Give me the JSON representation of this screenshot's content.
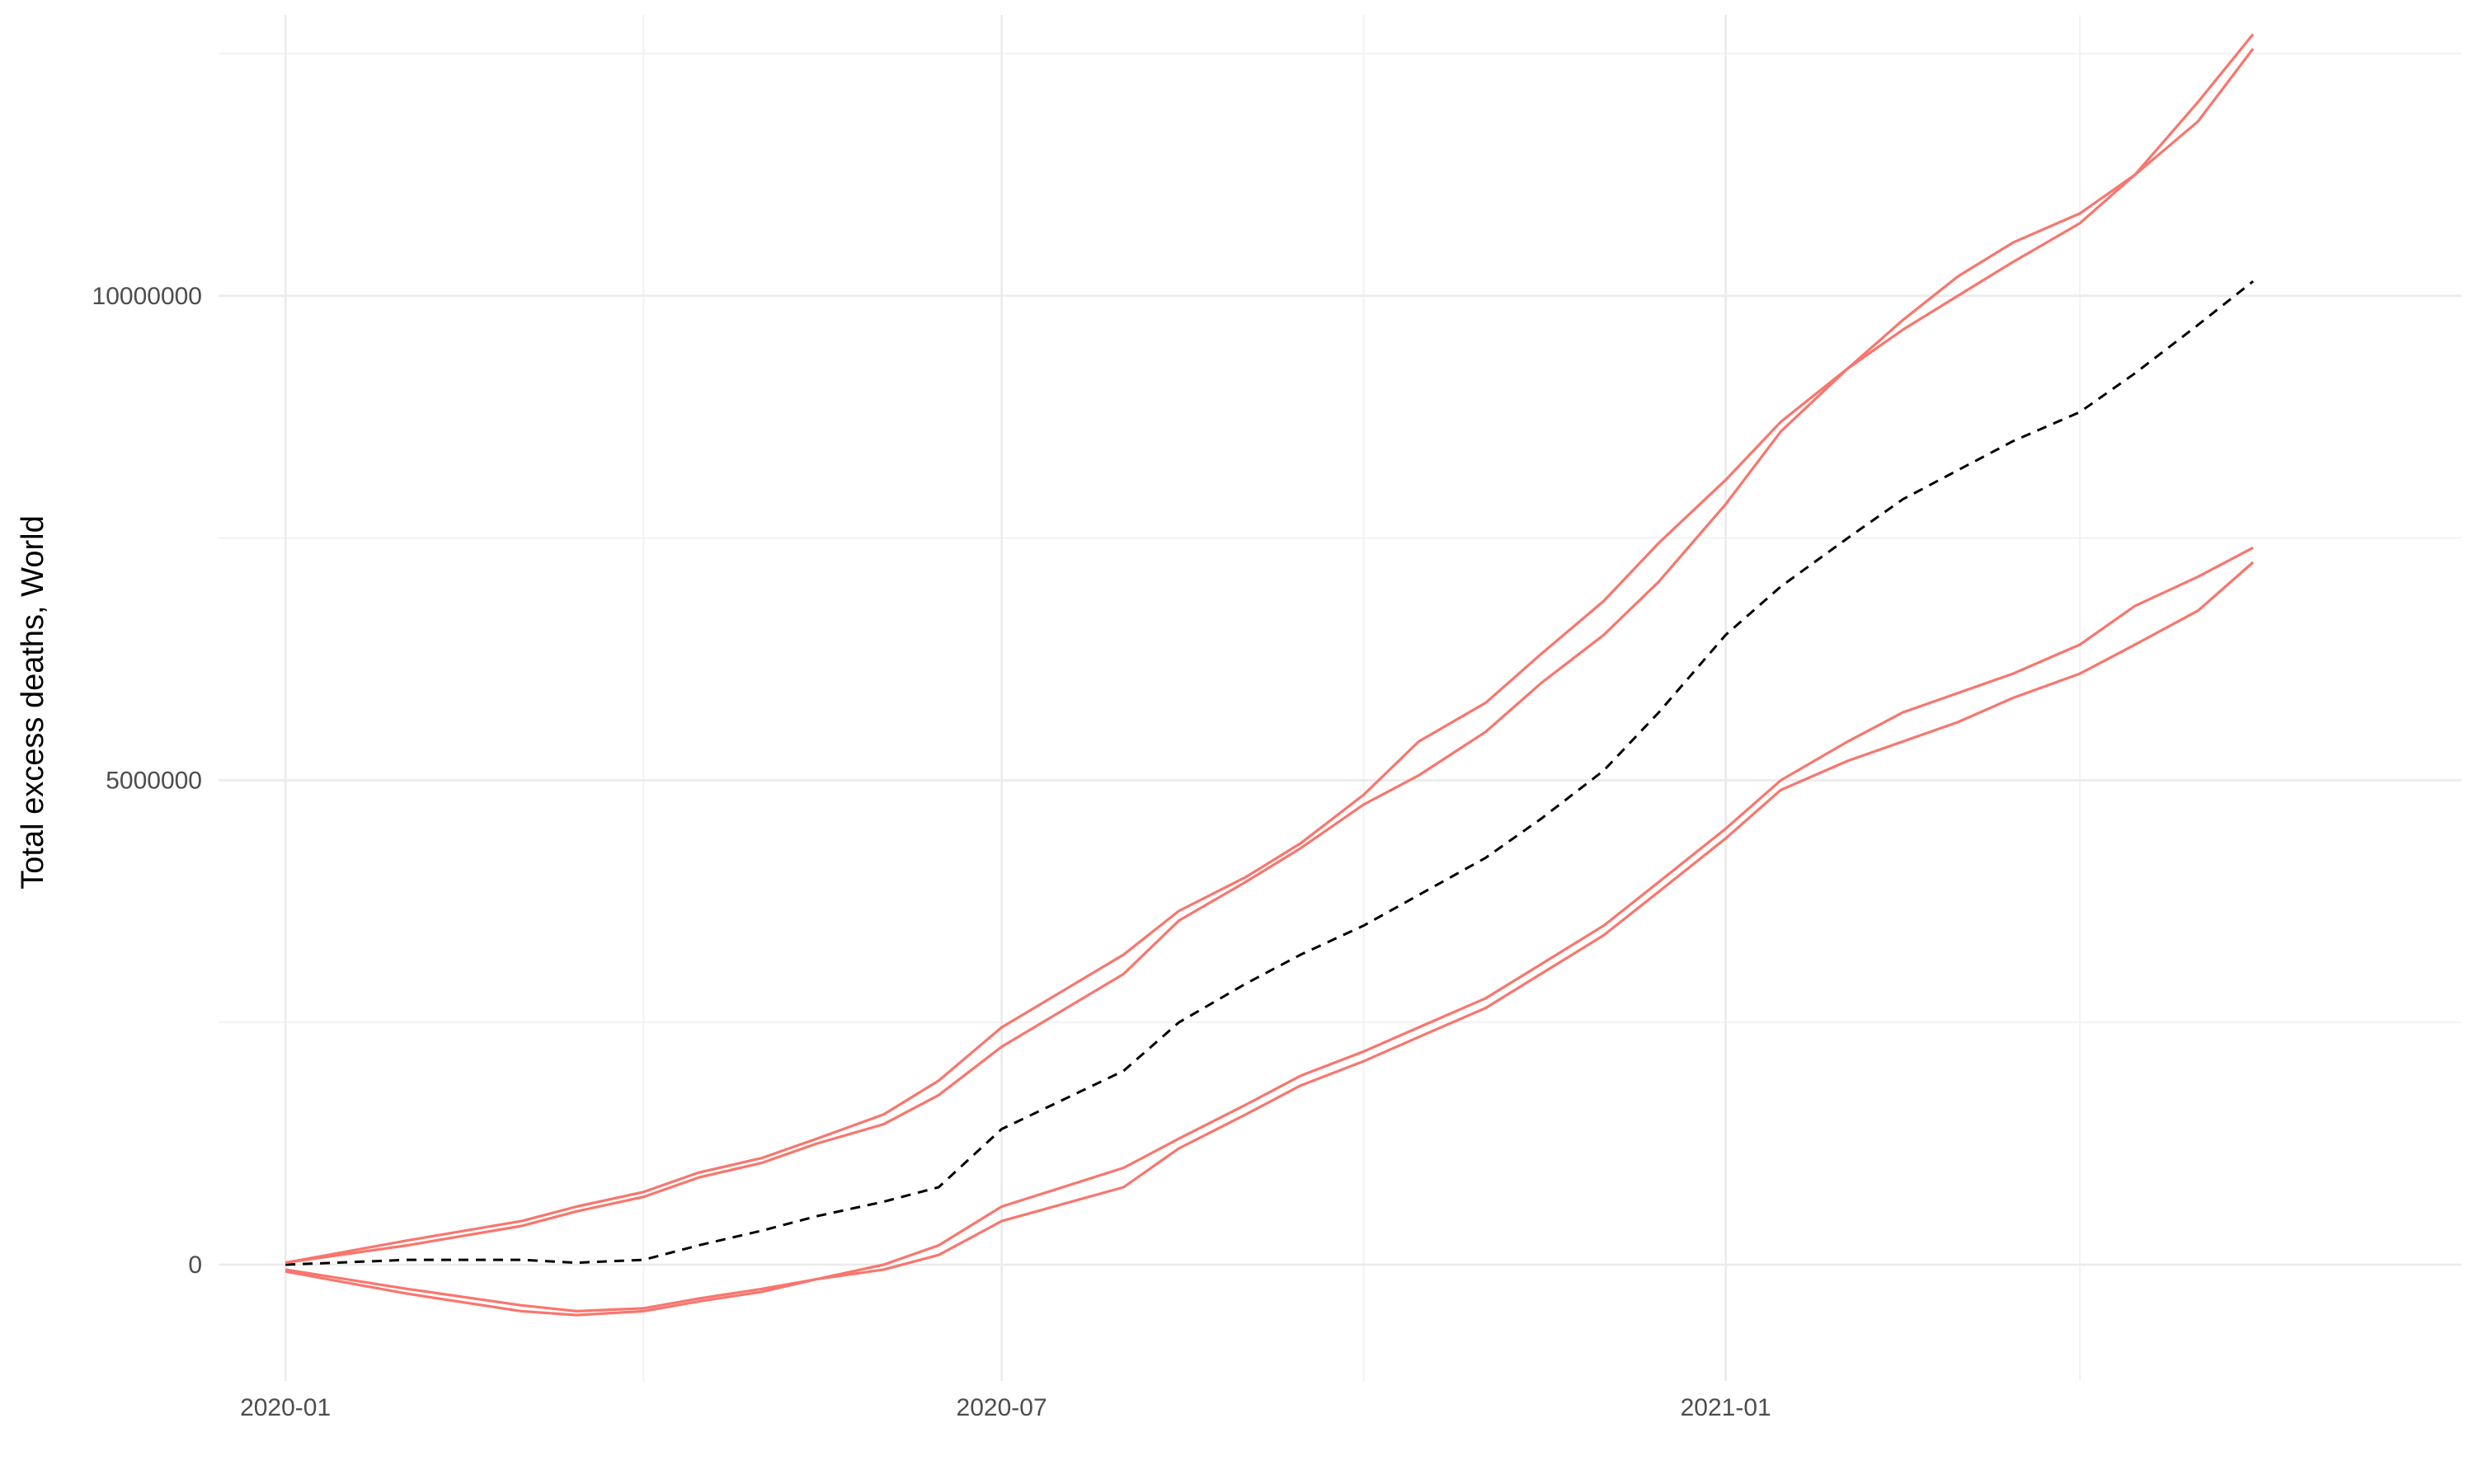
{
  "chart_data": {
    "type": "line",
    "title": "",
    "xlabel": "",
    "ylabel": "Total excess deaths, World",
    "xlim": [
      "2019-12-15",
      "2021-07-07"
    ],
    "ylim": [
      -1200000,
      12900000
    ],
    "x_ticks": [
      "2020-01",
      "2020-07",
      "2021-01"
    ],
    "x_ticks_at": [
      "2020-01-01",
      "2020-07-01",
      "2021-01-01"
    ],
    "x_minor_ticks_at": [
      "2020-04-01",
      "2020-10-01",
      "2021-04-01"
    ],
    "y_ticks": [
      0,
      5000000,
      10000000
    ],
    "y_tick_labels": [
      "0",
      "5000000",
      "10000000"
    ],
    "y_minor_ticks": [
      2500000,
      7500000,
      12500000
    ],
    "grid": true,
    "legend": "none",
    "series": [
      {
        "role": "central-estimate",
        "color": "#000000",
        "dash": "dashed",
        "points": [
          [
            "2020-01-01",
            0
          ],
          [
            "2020-02-01",
            50000
          ],
          [
            "2020-03-01",
            50000
          ],
          [
            "2020-03-15",
            20000
          ],
          [
            "2020-04-01",
            50000
          ],
          [
            "2020-04-15",
            200000
          ],
          [
            "2020-05-01",
            350000
          ],
          [
            "2020-05-15",
            500000
          ],
          [
            "2020-06-01",
            650000
          ],
          [
            "2020-06-15",
            800000
          ],
          [
            "2020-07-01",
            1400000
          ],
          [
            "2020-08-01",
            2000000
          ],
          [
            "2020-08-15",
            2500000
          ],
          [
            "2020-09-01",
            2900000
          ],
          [
            "2020-09-15",
            3200000
          ],
          [
            "2020-10-01",
            3500000
          ],
          [
            "2020-11-01",
            4200000
          ],
          [
            "2020-11-15",
            4600000
          ],
          [
            "2020-12-01",
            5100000
          ],
          [
            "2020-12-15",
            5700000
          ],
          [
            "2021-01-01",
            6500000
          ],
          [
            "2021-01-15",
            7000000
          ],
          [
            "2021-02-01",
            7500000
          ],
          [
            "2021-02-15",
            7900000
          ],
          [
            "2021-03-01",
            8200000
          ],
          [
            "2021-03-15",
            8500000
          ],
          [
            "2021-04-01",
            8800000
          ],
          [
            "2021-04-15",
            9200000
          ],
          [
            "2021-05-01",
            9700000
          ],
          [
            "2021-05-15",
            10150000
          ]
        ]
      },
      {
        "role": "upper-bound-a",
        "color": "#f8766d",
        "dash": "solid",
        "points": [
          [
            "2020-01-01",
            20000
          ],
          [
            "2020-02-01",
            250000
          ],
          [
            "2020-03-01",
            450000
          ],
          [
            "2020-03-15",
            600000
          ],
          [
            "2020-04-01",
            750000
          ],
          [
            "2020-04-15",
            950000
          ],
          [
            "2020-05-01",
            1100000
          ],
          [
            "2020-05-15",
            1300000
          ],
          [
            "2020-06-01",
            1550000
          ],
          [
            "2020-06-15",
            1900000
          ],
          [
            "2020-07-01",
            2450000
          ],
          [
            "2020-08-01",
            3200000
          ],
          [
            "2020-08-15",
            3650000
          ],
          [
            "2020-09-01",
            4000000
          ],
          [
            "2020-09-15",
            4350000
          ],
          [
            "2020-10-01",
            4850000
          ],
          [
            "2020-10-15",
            5400000
          ],
          [
            "2020-11-01",
            5800000
          ],
          [
            "2020-11-15",
            6300000
          ],
          [
            "2020-12-01",
            6850000
          ],
          [
            "2020-12-15",
            7450000
          ],
          [
            "2021-01-01",
            8100000
          ],
          [
            "2021-01-15",
            8700000
          ],
          [
            "2021-02-01",
            9250000
          ],
          [
            "2021-02-15",
            9750000
          ],
          [
            "2021-03-01",
            10200000
          ],
          [
            "2021-03-15",
            10550000
          ],
          [
            "2021-04-01",
            10850000
          ],
          [
            "2021-04-15",
            11250000
          ],
          [
            "2021-05-01",
            12000000
          ],
          [
            "2021-05-15",
            12700000
          ]
        ]
      },
      {
        "role": "upper-bound-b",
        "color": "#f8766d",
        "dash": "solid",
        "points": [
          [
            "2020-01-01",
            20000
          ],
          [
            "2020-02-01",
            200000
          ],
          [
            "2020-03-01",
            400000
          ],
          [
            "2020-03-15",
            550000
          ],
          [
            "2020-04-01",
            700000
          ],
          [
            "2020-04-15",
            900000
          ],
          [
            "2020-05-01",
            1050000
          ],
          [
            "2020-05-15",
            1250000
          ],
          [
            "2020-06-01",
            1450000
          ],
          [
            "2020-06-15",
            1750000
          ],
          [
            "2020-07-01",
            2250000
          ],
          [
            "2020-08-01",
            3000000
          ],
          [
            "2020-08-15",
            3550000
          ],
          [
            "2020-09-01",
            3950000
          ],
          [
            "2020-09-15",
            4300000
          ],
          [
            "2020-10-01",
            4750000
          ],
          [
            "2020-10-15",
            5050000
          ],
          [
            "2020-11-01",
            5500000
          ],
          [
            "2020-11-15",
            6000000
          ],
          [
            "2020-12-01",
            6500000
          ],
          [
            "2020-12-15",
            7050000
          ],
          [
            "2021-01-01",
            7850000
          ],
          [
            "2021-01-15",
            8600000
          ],
          [
            "2021-02-01",
            9250000
          ],
          [
            "2021-02-15",
            9650000
          ],
          [
            "2021-03-01",
            10000000
          ],
          [
            "2021-03-15",
            10350000
          ],
          [
            "2021-04-01",
            10750000
          ],
          [
            "2021-04-15",
            11250000
          ],
          [
            "2021-05-01",
            11800000
          ],
          [
            "2021-05-15",
            12550000
          ]
        ]
      },
      {
        "role": "lower-bound-a",
        "color": "#f8766d",
        "dash": "solid",
        "points": [
          [
            "2020-01-01",
            -50000
          ],
          [
            "2020-02-01",
            -250000
          ],
          [
            "2020-03-01",
            -420000
          ],
          [
            "2020-03-15",
            -480000
          ],
          [
            "2020-04-01",
            -450000
          ],
          [
            "2020-04-15",
            -350000
          ],
          [
            "2020-05-01",
            -250000
          ],
          [
            "2020-05-15",
            -150000
          ],
          [
            "2020-06-01",
            -50000
          ],
          [
            "2020-06-15",
            100000
          ],
          [
            "2020-07-01",
            450000
          ],
          [
            "2020-08-01",
            800000
          ],
          [
            "2020-08-15",
            1200000
          ],
          [
            "2020-09-01",
            1550000
          ],
          [
            "2020-09-15",
            1850000
          ],
          [
            "2020-10-01",
            2100000
          ],
          [
            "2020-10-15",
            2350000
          ],
          [
            "2020-11-01",
            2650000
          ],
          [
            "2020-11-15",
            3000000
          ],
          [
            "2020-12-01",
            3400000
          ],
          [
            "2020-12-15",
            3850000
          ],
          [
            "2021-01-01",
            4400000
          ],
          [
            "2021-01-15",
            4900000
          ],
          [
            "2021-02-01",
            5200000
          ],
          [
            "2021-02-15",
            5400000
          ],
          [
            "2021-03-01",
            5600000
          ],
          [
            "2021-03-15",
            5850000
          ],
          [
            "2021-04-01",
            6100000
          ],
          [
            "2021-04-15",
            6400000
          ],
          [
            "2021-05-01",
            6750000
          ],
          [
            "2021-05-15",
            7250000
          ]
        ]
      },
      {
        "role": "lower-bound-b",
        "color": "#f8766d",
        "dash": "solid",
        "points": [
          [
            "2020-01-01",
            -70000
          ],
          [
            "2020-02-01",
            -300000
          ],
          [
            "2020-03-01",
            -480000
          ],
          [
            "2020-03-15",
            -520000
          ],
          [
            "2020-04-01",
            -480000
          ],
          [
            "2020-04-15",
            -380000
          ],
          [
            "2020-05-01",
            -280000
          ],
          [
            "2020-05-15",
            -150000
          ],
          [
            "2020-06-01",
            0
          ],
          [
            "2020-06-15",
            200000
          ],
          [
            "2020-07-01",
            600000
          ],
          [
            "2020-08-01",
            1000000
          ],
          [
            "2020-08-15",
            1300000
          ],
          [
            "2020-09-01",
            1650000
          ],
          [
            "2020-09-15",
            1950000
          ],
          [
            "2020-10-01",
            2200000
          ],
          [
            "2020-10-15",
            2450000
          ],
          [
            "2020-11-01",
            2750000
          ],
          [
            "2020-11-15",
            3100000
          ],
          [
            "2020-12-01",
            3500000
          ],
          [
            "2020-12-15",
            3950000
          ],
          [
            "2021-01-01",
            4500000
          ],
          [
            "2021-01-15",
            5000000
          ],
          [
            "2021-02-01",
            5400000
          ],
          [
            "2021-02-15",
            5700000
          ],
          [
            "2021-03-01",
            5900000
          ],
          [
            "2021-03-15",
            6100000
          ],
          [
            "2021-04-01",
            6400000
          ],
          [
            "2021-04-15",
            6800000
          ],
          [
            "2021-05-01",
            7100000
          ],
          [
            "2021-05-15",
            7400000
          ]
        ]
      }
    ]
  }
}
